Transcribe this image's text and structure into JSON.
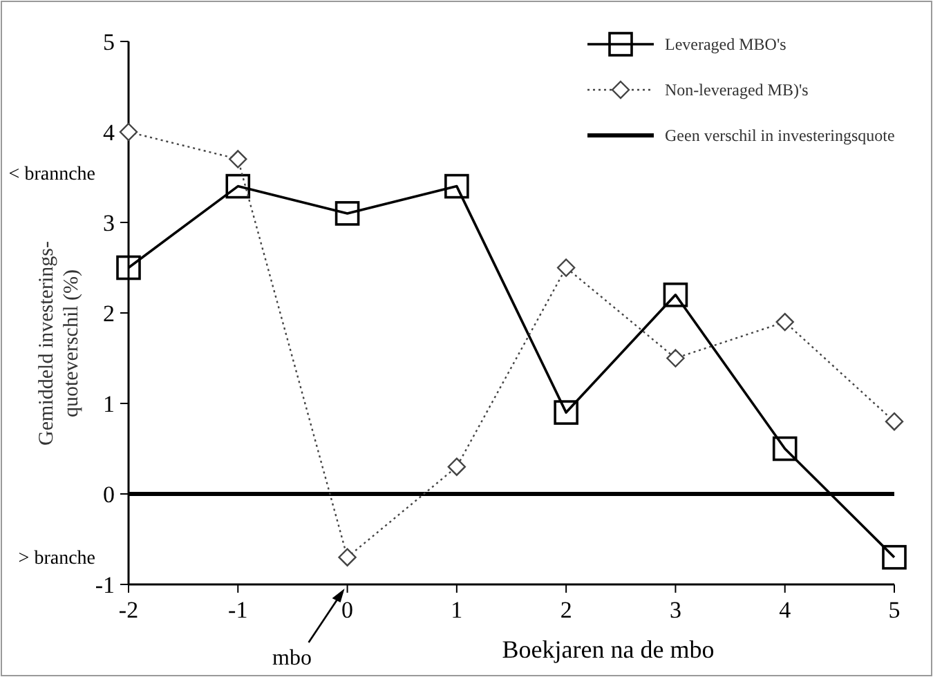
{
  "chart_data": {
    "type": "line",
    "xlabel": "Boekjaren na de mbo",
    "ylabel": "Gemiddeld investerings-\nquoteverschil (%)",
    "x": [
      -2,
      -1,
      0,
      1,
      2,
      3,
      4,
      5
    ],
    "series": [
      {
        "name": "Leveraged MBO's",
        "color": "#000000",
        "values": [
          2.5,
          3.4,
          3.1,
          3.4,
          0.9,
          2.2,
          0.5,
          -0.7
        ],
        "marker": "square",
        "line_style": "solid"
      },
      {
        "name": "Non-leveraged MB)'s",
        "color": "#444444",
        "values": [
          4.0,
          3.7,
          -0.7,
          0.3,
          2.5,
          1.5,
          1.9,
          0.8
        ],
        "marker": "diamond",
        "line_style": "dotted"
      }
    ],
    "xlim": [
      -2,
      5
    ],
    "xticks": [
      -2,
      -1,
      0,
      1,
      2,
      3,
      4,
      5
    ],
    "ylim": [
      -1,
      5
    ],
    "yticks": [
      -1,
      0,
      1,
      2,
      3,
      4,
      5
    ],
    "ref_lines": [
      {
        "axis": "y",
        "value": 0,
        "label": "Geen verschil in investeringsquote",
        "color": "#000000"
      }
    ],
    "annotations": [
      "< brannche",
      "> branche",
      "mbo"
    ],
    "legend": "top right",
    "grid": false
  }
}
